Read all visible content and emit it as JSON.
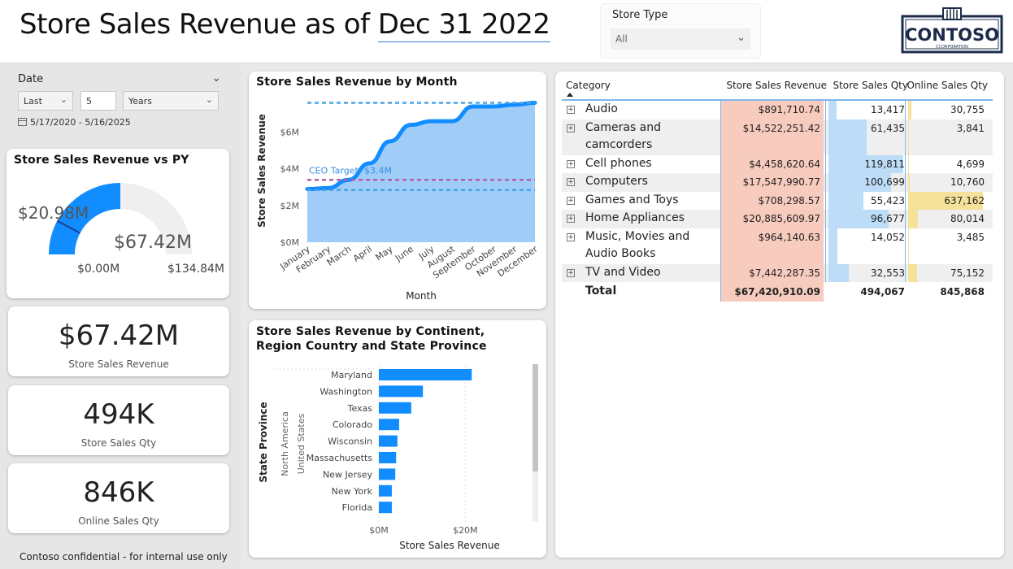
{
  "header": {
    "title_prefix": "Store Sales Revenue as of ",
    "title_date": "Dec 31 2022"
  },
  "store_type_slicer": {
    "label": "Store Type",
    "value": "All"
  },
  "logo": {
    "name": "CONTOSO",
    "sub": "CCORPORATION"
  },
  "date_slicer": {
    "label": "Date",
    "relative": "Last",
    "count": "5",
    "unit": "Years",
    "range": "5/17/2020 - 5/16/2025"
  },
  "gauge": {
    "title": "Store Sales Revenue vs PY",
    "value": 67.42,
    "value_label": "$67.42M",
    "target": 20.98,
    "target_label": "$20.98M",
    "min": 0,
    "min_label": "$0.00M",
    "max": 134.84,
    "max_label": "$134.84M",
    "fill_color": "#118DFF"
  },
  "kpis": [
    {
      "value": "$67.42M",
      "label": "Store Sales Revenue"
    },
    {
      "value": "494K",
      "label": "Store Sales Qty"
    },
    {
      "value": "846K",
      "label": "Online Sales Qty"
    }
  ],
  "footer": "Contoso confidential - for internal use only",
  "chart_data": [
    {
      "type": "area",
      "title": "Store Sales Revenue by Month",
      "xlabel": "Month",
      "ylabel": "Store Sales Revenue",
      "categories": [
        "January",
        "February",
        "March",
        "April",
        "May",
        "June",
        "July",
        "August",
        "September",
        "October",
        "November",
        "December"
      ],
      "values": [
        2.9,
        2.95,
        3.4,
        4.3,
        5.5,
        6.4,
        6.6,
        6.6,
        7.4,
        7.4,
        7.5,
        7.6
      ],
      "yticks": [
        "$0M",
        "$2M",
        "$4M",
        "$6M"
      ],
      "ylim": [
        0,
        7.8
      ],
      "reference_lines": [
        {
          "label": "CEO Target: $3.4M",
          "value": 3.4,
          "color": "#b15fa6"
        },
        {
          "label": "",
          "value": 7.6,
          "color": "#4aa3e8"
        },
        {
          "label": "",
          "value": 2.85,
          "color": "#4aa3e8"
        }
      ],
      "area_color": "#9fcdf8",
      "line_color": "#118DFF"
    },
    {
      "type": "bar",
      "title": "Store Sales Revenue by Continent, Region Country and State Province",
      "xlabel": "Store Sales Revenue",
      "ylabel": "State Province",
      "group_labels": [
        "North America",
        "United States"
      ],
      "categories": [
        "Maryland",
        "Washington",
        "Texas",
        "Colorado",
        "Wisconsin",
        "Massachusetts",
        "New Jersey",
        "New York",
        "Florida"
      ],
      "values": [
        21.5,
        10.2,
        7.5,
        4.7,
        4.3,
        4.0,
        3.8,
        3.0,
        3.0
      ],
      "xticks": [
        "$0M",
        "$20M"
      ],
      "xlim": [
        0,
        32
      ],
      "bar_color": "#118DFF"
    }
  ],
  "matrix": {
    "headers": [
      "Category",
      "Store Sales Revenue",
      "Store Sales Qty",
      "Online Sales Qty"
    ],
    "rows": [
      {
        "category": [
          "Audio"
        ],
        "revenue": "$891,710.74",
        "qty": "13,417",
        "qty_v": 13417,
        "online": "30,755",
        "online_v": 30755
      },
      {
        "category": [
          "Cameras and",
          "camcorders"
        ],
        "revenue": "$14,522,251.42",
        "qty": "61,435",
        "qty_v": 61435,
        "online": "3,841",
        "online_v": 3841
      },
      {
        "category": [
          "Cell phones"
        ],
        "revenue": "$4,458,620.64",
        "qty": "119,811",
        "qty_v": 119811,
        "online": "4,699",
        "online_v": 4699
      },
      {
        "category": [
          "Computers"
        ],
        "revenue": "$17,547,990.77",
        "qty": "100,699",
        "qty_v": 100699,
        "online": "10,760",
        "online_v": 10760
      },
      {
        "category": [
          "Games and Toys"
        ],
        "revenue": "$708,298.57",
        "qty": "55,423",
        "qty_v": 55423,
        "online": "637,162",
        "online_v": 637162
      },
      {
        "category": [
          "Home Appliances"
        ],
        "revenue": "$20,885,609.97",
        "qty": "96,677",
        "qty_v": 96677,
        "online": "80,014",
        "online_v": 80014
      },
      {
        "category": [
          "Music, Movies and",
          "Audio Books"
        ],
        "revenue": "$964,140.63",
        "qty": "14,052",
        "qty_v": 14052,
        "online": "3,485",
        "online_v": 3485
      },
      {
        "category": [
          "TV and Video"
        ],
        "revenue": "$7,442,287.35",
        "qty": "32,553",
        "qty_v": 32553,
        "online": "75,152",
        "online_v": 75152
      }
    ],
    "total": {
      "label": "Total",
      "revenue": "$67,420,910.09",
      "qty": "494,067",
      "online": "845,868"
    },
    "revenue_bg": "#f7cbbd",
    "qty_bar": "#bcdcf8",
    "online_bar": "#f5e29a"
  }
}
